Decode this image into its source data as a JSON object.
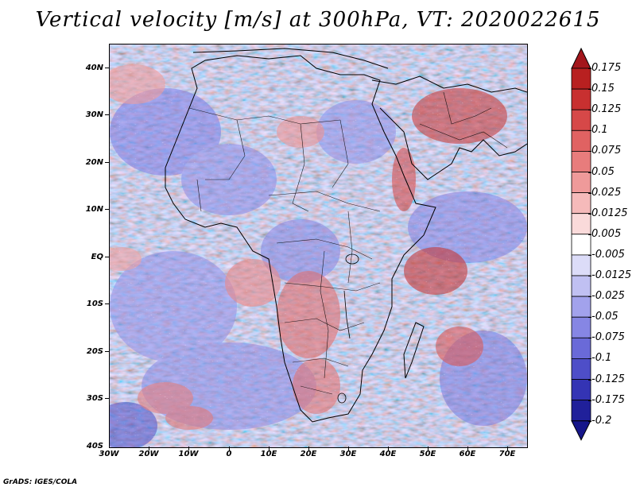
{
  "title": "Vertical velocity [m/s] at 300hPa, VT: 2020022615",
  "latitude_labels": [
    "40N",
    "30N",
    "20N",
    "10N",
    "EQ",
    "10S",
    "20S",
    "30S",
    "40S"
  ],
  "longitude_labels": [
    "30W",
    "20W",
    "10W",
    "0",
    "10E",
    "20E",
    "30E",
    "40E",
    "50E",
    "60E",
    "70E"
  ],
  "colorbar": {
    "levels": [
      "0.175",
      "0.15",
      "0.125",
      "0.1",
      "0.075",
      "0.05",
      "0.025",
      "0.0125",
      "0.005",
      "-0.005",
      "-0.0125",
      "-0.025",
      "-0.05",
      "-0.075",
      "-0.1",
      "-0.125",
      "-0.175",
      "-0.2"
    ],
    "colors": [
      "#a3161c",
      "#b82020",
      "#c83030",
      "#d64848",
      "#e06262",
      "#e87c7c",
      "#ef9a9a",
      "#f5baba",
      "#fadada",
      "#ffffff",
      "#dcdcf8",
      "#c0c0f2",
      "#a2a2ec",
      "#8686e4",
      "#6a6ad8",
      "#4e4ec8",
      "#3434b4",
      "#20209a",
      "#16168a"
    ]
  },
  "footer": "GrADS: IGES/COLA"
}
